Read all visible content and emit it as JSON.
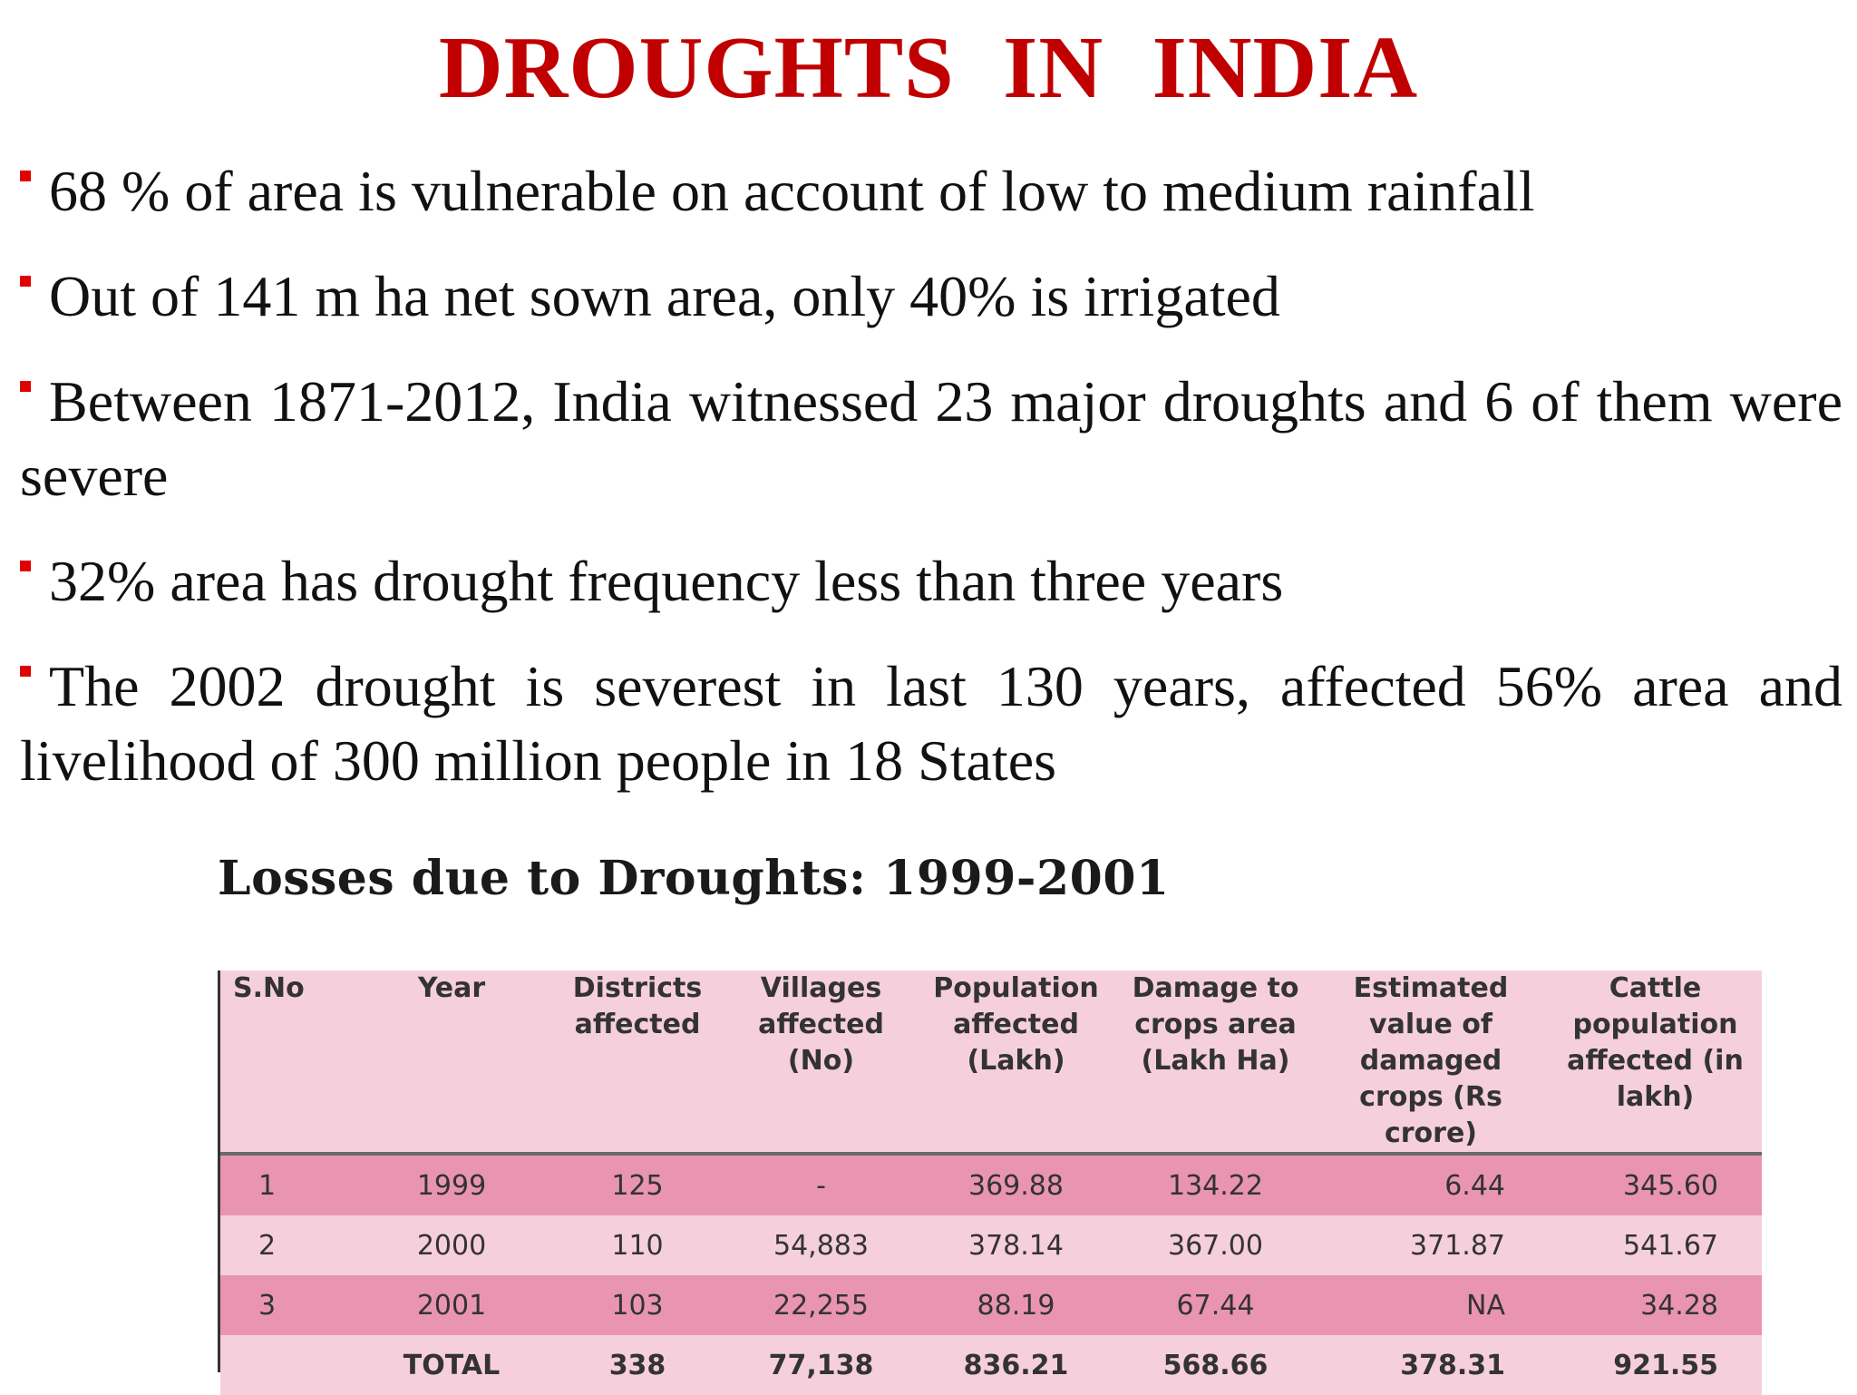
{
  "title": "DROUGHTS  IN  INDIA",
  "bullets": [
    "68 % of area is vulnerable on account of low to medium rainfall",
    "Out of 141 m ha net sown area, only 40% is irrigated",
    "Between 1871-2012, India witnessed 23 major droughts and 6 of them were severe",
    "32% area has drought frequency less than three years",
    "The 2002 drought is severest in last 130 years, affected 56% area and livelihood of 300 million people in 18 States"
  ],
  "table": {
    "title": "Losses due to Droughts: 1999-2001",
    "headers": [
      "S.No",
      "Year",
      "Districts affected",
      "Villages affected (No)",
      "Population affected (Lakh)",
      "Damage to crops area (Lakh Ha)",
      "Estimated value of damaged crops (Rs crore)",
      "Cattle population affected (in lakh)"
    ],
    "rows": [
      [
        "1",
        "1999",
        "125",
        "-",
        "369.88",
        "134.22",
        "6.44",
        "345.60"
      ],
      [
        "2",
        "2000",
        "110",
        "54,883",
        "378.14",
        "367.00",
        "371.87",
        "541.67"
      ],
      [
        "3",
        "2001",
        "103",
        "22,255",
        "88.19",
        "67.44",
        "NA",
        "34.28"
      ],
      [
        "",
        "TOTAL",
        "338",
        "77,138",
        "836.21",
        "568.66",
        "378.31",
        "921.55"
      ]
    ]
  },
  "colors": {
    "title": "#c00000",
    "bullet": "#e00000",
    "table_light": "#f6cfdc",
    "table_dark": "#e995b1"
  }
}
